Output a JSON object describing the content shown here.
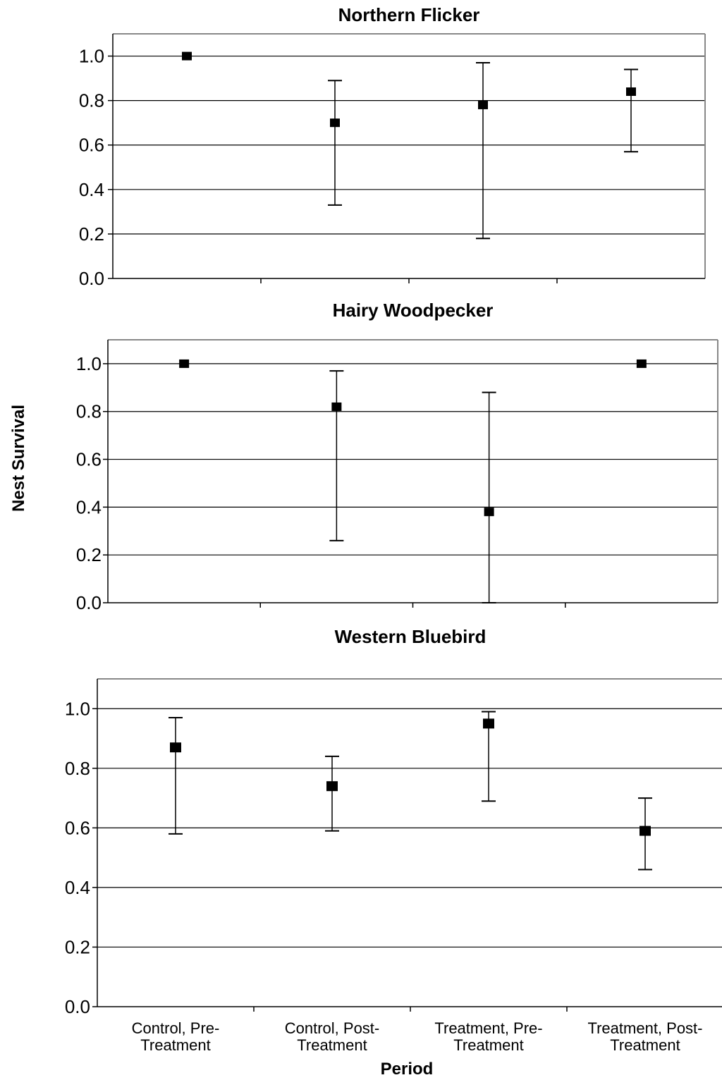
{
  "chart_data": [
    {
      "type": "scatter",
      "title": "Northern Flicker",
      "categories": [
        "Control, Pre-Treatment",
        "Control, Post-Treatment",
        "Treatment, Pre-Treatment",
        "Treatment, Post-Treatment"
      ],
      "points": [
        {
          "y": 1.0,
          "low": 1.0,
          "high": 1.0
        },
        {
          "y": 0.7,
          "low": 0.33,
          "high": 0.89
        },
        {
          "y": 0.78,
          "low": 0.18,
          "high": 0.97
        },
        {
          "y": 0.84,
          "low": 0.57,
          "high": 0.94
        }
      ],
      "ylim": [
        0,
        1.1
      ],
      "yticks": [
        "0.0",
        "0.2",
        "0.4",
        "0.6",
        "0.8",
        "1.0"
      ],
      "grid": true
    },
    {
      "type": "scatter",
      "title": "Hairy Woodpecker",
      "categories": [
        "Control, Pre-Treatment",
        "Control, Post-Treatment",
        "Treatment, Pre-Treatment",
        "Treatment, Post-Treatment"
      ],
      "points": [
        {
          "y": 1.0,
          "low": 1.0,
          "high": 1.0
        },
        {
          "y": 0.82,
          "low": 0.26,
          "high": 0.97
        },
        {
          "y": 0.38,
          "low": 0.0,
          "high": 0.88
        },
        {
          "y": 1.0,
          "low": 1.0,
          "high": 1.0
        }
      ],
      "ylim": [
        0,
        1.1
      ],
      "yticks": [
        "0.0",
        "0.2",
        "0.4",
        "0.6",
        "0.8",
        "1.0"
      ],
      "grid": true
    },
    {
      "type": "scatter",
      "title": "Western Bluebird",
      "categories": [
        "Control, Pre-Treatment",
        "Control, Post-Treatment",
        "Treatment, Pre-Treatment",
        "Treatment, Post-Treatment"
      ],
      "category_labels": [
        [
          "Control, Pre-",
          "Treatment"
        ],
        [
          "Control, Post-",
          "Treatment"
        ],
        [
          "Treatment, Pre-",
          "Treatment"
        ],
        [
          "Treatment, Post-",
          "Treatment"
        ]
      ],
      "points": [
        {
          "y": 0.87,
          "low": 0.58,
          "high": 0.97
        },
        {
          "y": 0.74,
          "low": 0.59,
          "high": 0.84
        },
        {
          "y": 0.95,
          "low": 0.69,
          "high": 0.99
        },
        {
          "y": 0.59,
          "low": 0.46,
          "high": 0.7
        }
      ],
      "ylim": [
        0,
        1.1
      ],
      "yticks": [
        "0.0",
        "0.2",
        "0.4",
        "0.6",
        "0.8",
        "1.0"
      ],
      "grid": true,
      "xlabel": "Period"
    }
  ],
  "ylabel": "Nest Survival"
}
